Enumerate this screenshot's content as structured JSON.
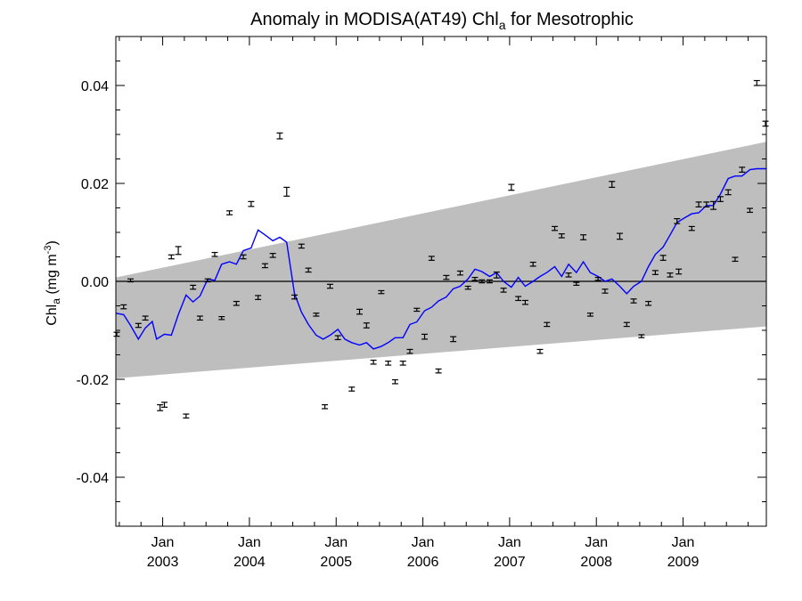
{
  "chart_data": {
    "type": "scatter",
    "title": "Anomaly in MODISA(AT49) Chl",
    "title_subscript": "a",
    "title_suffix": " for Mesotrophic",
    "ylabel": "Chl",
    "ylabel_subscript": "a",
    "ylabel_units": "(mg m",
    "ylabel_units_exp": "-3",
    "ylabel_units_close": ")",
    "xlabel": "",
    "xlim": [
      2002.46,
      2009.96
    ],
    "ylim": [
      -0.05,
      0.05
    ],
    "y_ticks": [
      {
        "value": 0.04,
        "label": "0.04"
      },
      {
        "value": 0.02,
        "label": "0.02"
      },
      {
        "value": 0.0,
        "label": "0.00"
      },
      {
        "value": -0.02,
        "label": "-0.02"
      },
      {
        "value": -0.04,
        "label": "-0.04"
      }
    ],
    "x_ticks": [
      {
        "value": 2003.0,
        "month": "Jan",
        "year": "2003"
      },
      {
        "value": 2004.0,
        "month": "Jan",
        "year": "2004"
      },
      {
        "value": 2005.0,
        "month": "Jan",
        "year": "2005"
      },
      {
        "value": 2006.0,
        "month": "Jan",
        "year": "2006"
      },
      {
        "value": 2007.0,
        "month": "Jan",
        "year": "2007"
      },
      {
        "value": 2008.0,
        "month": "Jan",
        "year": "2008"
      },
      {
        "value": 2009.0,
        "month": "Jan",
        "year": "2009"
      }
    ],
    "colors": {
      "band": "#bebebe",
      "line": "#0000ff",
      "points": "#000000",
      "zero_line": "#000000"
    },
    "band": {
      "upper": [
        [
          2002.46,
          0.0008
        ],
        [
          2009.96,
          0.0285
        ]
      ],
      "lower": [
        [
          2002.46,
          -0.0198
        ],
        [
          2009.96,
          -0.0092
        ]
      ]
    },
    "points": [
      {
        "x": 2002.47,
        "y": -0.0108,
        "err": 0.0004
      },
      {
        "x": 2002.55,
        "y": -0.0052,
        "err": 0.0004
      },
      {
        "x": 2002.63,
        "y": 0.0002,
        "err": 0.0003
      },
      {
        "x": 2002.72,
        "y": -0.009,
        "err": 0.0004
      },
      {
        "x": 2002.8,
        "y": -0.0075,
        "err": 0.0004
      },
      {
        "x": 2002.97,
        "y": -0.0258,
        "err": 0.0006
      },
      {
        "x": 2003.02,
        "y": -0.0252,
        "err": 0.0005
      },
      {
        "x": 2003.1,
        "y": 0.005,
        "err": 0.0004
      },
      {
        "x": 2003.18,
        "y": 0.0063,
        "err": 0.0008
      },
      {
        "x": 2003.27,
        "y": -0.0275,
        "err": 0.0004
      },
      {
        "x": 2003.35,
        "y": -0.0012,
        "err": 0.0004
      },
      {
        "x": 2003.43,
        "y": -0.0075,
        "err": 0.0004
      },
      {
        "x": 2003.52,
        "y": 0.0002,
        "err": 0.0003
      },
      {
        "x": 2003.6,
        "y": 0.0055,
        "err": 0.0004
      },
      {
        "x": 2003.68,
        "y": -0.0075,
        "err": 0.0003
      },
      {
        "x": 2003.77,
        "y": 0.014,
        "err": 0.0004
      },
      {
        "x": 2003.85,
        "y": -0.0045,
        "err": 0.0004
      },
      {
        "x": 2003.93,
        "y": 0.005,
        "err": 0.0004
      },
      {
        "x": 2004.02,
        "y": 0.0158,
        "err": 0.0005
      },
      {
        "x": 2004.1,
        "y": -0.0033,
        "err": 0.0004
      },
      {
        "x": 2004.18,
        "y": 0.0032,
        "err": 0.0004
      },
      {
        "x": 2004.27,
        "y": 0.0053,
        "err": 0.0004
      },
      {
        "x": 2004.35,
        "y": 0.0297,
        "err": 0.0006
      },
      {
        "x": 2004.43,
        "y": 0.0183,
        "err": 0.0009
      },
      {
        "x": 2004.52,
        "y": -0.0032,
        "err": 0.0004
      },
      {
        "x": 2004.6,
        "y": 0.0072,
        "err": 0.0004
      },
      {
        "x": 2004.68,
        "y": 0.0023,
        "err": 0.0004
      },
      {
        "x": 2004.77,
        "y": -0.0068,
        "err": 0.0003
      },
      {
        "x": 2004.87,
        "y": -0.0256,
        "err": 0.0004
      },
      {
        "x": 2004.93,
        "y": -0.001,
        "err": 0.0004
      },
      {
        "x": 2005.02,
        "y": -0.0115,
        "err": 0.0004
      },
      {
        "x": 2005.18,
        "y": -0.022,
        "err": 0.0004
      },
      {
        "x": 2005.27,
        "y": -0.0062,
        "err": 0.0005
      },
      {
        "x": 2005.35,
        "y": -0.009,
        "err": 0.0005
      },
      {
        "x": 2005.43,
        "y": -0.0165,
        "err": 0.0004
      },
      {
        "x": 2005.52,
        "y": -0.0022,
        "err": 0.0003
      },
      {
        "x": 2005.6,
        "y": -0.0167,
        "err": 0.0004
      },
      {
        "x": 2005.68,
        "y": -0.0205,
        "err": 0.0004
      },
      {
        "x": 2005.77,
        "y": -0.0167,
        "err": 0.0004
      },
      {
        "x": 2005.85,
        "y": -0.0143,
        "err": 0.0004
      },
      {
        "x": 2005.93,
        "y": -0.0058,
        "err": 0.0003
      },
      {
        "x": 2006.02,
        "y": -0.0113,
        "err": 0.0005
      },
      {
        "x": 2006.1,
        "y": 0.0047,
        "err": 0.0004
      },
      {
        "x": 2006.18,
        "y": -0.0183,
        "err": 0.0004
      },
      {
        "x": 2006.27,
        "y": 0.0008,
        "err": 0.0004
      },
      {
        "x": 2006.35,
        "y": -0.0118,
        "err": 0.0005
      },
      {
        "x": 2006.43,
        "y": 0.0017,
        "err": 0.0004
      },
      {
        "x": 2006.52,
        "y": -0.0013,
        "err": 0.0003
      },
      {
        "x": 2006.6,
        "y": 0.0005,
        "err": 0.0003
      },
      {
        "x": 2006.68,
        "y": 0.0,
        "err": 0.0003
      },
      {
        "x": 2006.77,
        "y": 0.0,
        "err": 0.0003
      },
      {
        "x": 2006.85,
        "y": 0.0013,
        "err": 0.0006
      },
      {
        "x": 2006.93,
        "y": -0.0018,
        "err": 0.0004
      },
      {
        "x": 2007.02,
        "y": 0.0192,
        "err": 0.0006
      },
      {
        "x": 2007.1,
        "y": -0.0035,
        "err": 0.0004
      },
      {
        "x": 2007.18,
        "y": -0.0043,
        "err": 0.0004
      },
      {
        "x": 2007.27,
        "y": 0.0035,
        "err": 0.0004
      },
      {
        "x": 2007.35,
        "y": -0.0143,
        "err": 0.0004
      },
      {
        "x": 2007.43,
        "y": -0.0088,
        "err": 0.0004
      },
      {
        "x": 2007.52,
        "y": 0.0108,
        "err": 0.0004
      },
      {
        "x": 2007.6,
        "y": 0.0093,
        "err": 0.0004
      },
      {
        "x": 2007.68,
        "y": 0.0013,
        "err": 0.0004
      },
      {
        "x": 2007.77,
        "y": -0.0005,
        "err": 0.0003
      },
      {
        "x": 2007.85,
        "y": 0.009,
        "err": 0.0005
      },
      {
        "x": 2007.93,
        "y": -0.0068,
        "err": 0.0003
      },
      {
        "x": 2008.02,
        "y": 0.0005,
        "err": 0.0003
      },
      {
        "x": 2008.1,
        "y": -0.002,
        "err": 0.0004
      },
      {
        "x": 2008.18,
        "y": 0.0198,
        "err": 0.0006
      },
      {
        "x": 2008.27,
        "y": 0.0092,
        "err": 0.0006
      },
      {
        "x": 2008.35,
        "y": -0.0088,
        "err": 0.0004
      },
      {
        "x": 2008.43,
        "y": -0.004,
        "err": 0.0004
      },
      {
        "x": 2008.52,
        "y": -0.0112,
        "err": 0.0003
      },
      {
        "x": 2008.6,
        "y": -0.0045,
        "err": 0.0004
      },
      {
        "x": 2008.68,
        "y": 0.0018,
        "err": 0.0004
      },
      {
        "x": 2008.77,
        "y": 0.0048,
        "err": 0.0005
      },
      {
        "x": 2008.85,
        "y": 0.0013,
        "err": 0.0004
      },
      {
        "x": 2008.93,
        "y": 0.0123,
        "err": 0.0005
      },
      {
        "x": 2008.95,
        "y": 0.002,
        "err": 0.0005
      },
      {
        "x": 2009.1,
        "y": 0.0108,
        "err": 0.0004
      },
      {
        "x": 2009.18,
        "y": 0.0157,
        "err": 0.0005
      },
      {
        "x": 2009.27,
        "y": 0.0157,
        "err": 0.0005
      },
      {
        "x": 2009.35,
        "y": 0.0155,
        "err": 0.0008
      },
      {
        "x": 2009.43,
        "y": 0.0168,
        "err": 0.0005
      },
      {
        "x": 2009.52,
        "y": 0.0182,
        "err": 0.0005
      },
      {
        "x": 2009.6,
        "y": 0.0045,
        "err": 0.0004
      },
      {
        "x": 2009.68,
        "y": 0.0228,
        "err": 0.0005
      },
      {
        "x": 2009.77,
        "y": 0.0145,
        "err": 0.0004
      },
      {
        "x": 2009.85,
        "y": 0.0405,
        "err": 0.0005
      },
      {
        "x": 2009.95,
        "y": 0.0322,
        "err": 0.0005
      }
    ],
    "series": [
      {
        "x": [
          2002.46,
          2002.55,
          2002.63,
          2002.72,
          2002.8,
          2002.88,
          2002.93,
          2003.02,
          2003.1,
          2003.18,
          2003.27,
          2003.35,
          2003.43,
          2003.52,
          2003.6,
          2003.68,
          2003.77,
          2003.85,
          2003.93,
          2004.02,
          2004.1,
          2004.18,
          2004.27,
          2004.35,
          2004.43,
          2004.52,
          2004.6,
          2004.68,
          2004.77,
          2004.85,
          2004.93,
          2005.02,
          2005.1,
          2005.18,
          2005.27,
          2005.35,
          2005.43,
          2005.52,
          2005.6,
          2005.68,
          2005.77,
          2005.85,
          2005.93,
          2006.02,
          2006.1,
          2006.18,
          2006.27,
          2006.35,
          2006.43,
          2006.52,
          2006.6,
          2006.68,
          2006.77,
          2006.85,
          2006.93,
          2007.02,
          2007.1,
          2007.18,
          2007.27,
          2007.35,
          2007.43,
          2007.52,
          2007.6,
          2007.68,
          2007.77,
          2007.85,
          2007.93,
          2008.02,
          2008.1,
          2008.18,
          2008.27,
          2008.35,
          2008.43,
          2008.52,
          2008.6,
          2008.68,
          2008.77,
          2008.85,
          2008.93,
          2009.02,
          2009.1,
          2009.18,
          2009.27,
          2009.35,
          2009.43,
          2009.52,
          2009.6,
          2009.68,
          2009.77,
          2009.85,
          2009.96
        ],
        "y": [
          -0.0065,
          -0.0068,
          -0.009,
          -0.0118,
          -0.0095,
          -0.0082,
          -0.0118,
          -0.0108,
          -0.011,
          -0.0068,
          -0.0028,
          -0.0042,
          -0.003,
          0.0005,
          0.0002,
          0.0035,
          0.004,
          0.0035,
          0.0063,
          0.0068,
          0.0105,
          0.0095,
          0.0083,
          0.009,
          0.008,
          -0.0025,
          -0.0063,
          -0.0088,
          -0.011,
          -0.0118,
          -0.011,
          -0.0098,
          -0.0118,
          -0.0125,
          -0.013,
          -0.0125,
          -0.0138,
          -0.0133,
          -0.0125,
          -0.0115,
          -0.0115,
          -0.0088,
          -0.0083,
          -0.006,
          -0.0053,
          -0.004,
          -0.0032,
          -0.0015,
          -0.001,
          0.0005,
          0.0025,
          0.002,
          0.001,
          0.0018,
          0.0,
          -0.0012,
          0.0008,
          -0.001,
          0.0,
          0.001,
          0.0018,
          0.003,
          0.001,
          0.0035,
          0.0018,
          0.004,
          0.0018,
          0.001,
          0.0,
          0.0005,
          -0.001,
          -0.0025,
          -0.001,
          0.0,
          0.003,
          0.0055,
          0.007,
          0.0095,
          0.012,
          0.013,
          0.0138,
          0.014,
          0.0155,
          0.0155,
          0.0178,
          0.021,
          0.0215,
          0.0215,
          0.0228,
          0.023,
          0.023
        ]
      }
    ]
  }
}
